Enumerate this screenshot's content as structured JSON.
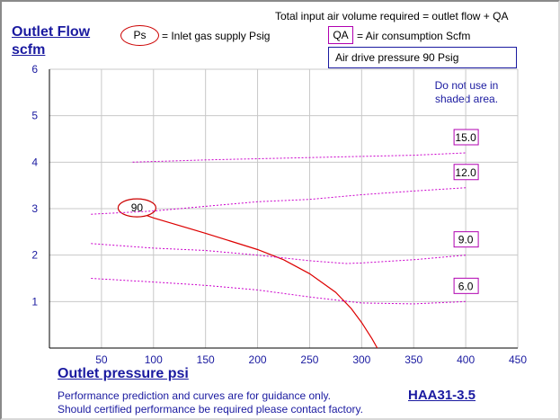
{
  "header": {
    "total_note": "Total input air volume required = outlet flow + QA",
    "ps_symbol": "Ps",
    "ps_desc": "= Inlet gas supply  Psig",
    "qa_symbol": "QA",
    "qa_desc": "= Air consumption  Scfm",
    "drive_pressure": "Air drive pressure  90 Psig"
  },
  "warning": {
    "line1": "Do not use in",
    "line2": "shaded area."
  },
  "footer": {
    "line1": "Performance prediction and curves are for guidance only.",
    "line2": "Should certified performance be required please contact factory.",
    "model": "HAA31-3.5"
  },
  "chart_data": {
    "type": "line",
    "ylabel_line1": "Outlet Flow",
    "ylabel_line2": "scfm",
    "xlabel": "Outlet pressure   psi",
    "xlim": [
      0,
      450
    ],
    "ylim": [
      0,
      6
    ],
    "xticks": [
      50,
      100,
      150,
      200,
      250,
      300,
      350,
      400,
      450
    ],
    "yticks": [
      1,
      2,
      3,
      4,
      5,
      6
    ],
    "grid": true,
    "series": [
      {
        "name": "90",
        "style": "solid",
        "color": "#dd0000",
        "label_position": "start",
        "x": [
          85,
          100,
          150,
          200,
          225,
          250,
          275,
          290,
          300,
          310,
          315
        ],
        "y": [
          2.92,
          2.8,
          2.47,
          2.12,
          1.9,
          1.6,
          1.2,
          0.85,
          0.55,
          0.2,
          0.0
        ]
      },
      {
        "name": "15.0",
        "style": "dashed",
        "color": "#cc00cc",
        "label_position": "end",
        "x": [
          80,
          150,
          250,
          350,
          400
        ],
        "y": [
          4.0,
          4.05,
          4.1,
          4.15,
          4.2
        ]
      },
      {
        "name": "12.0",
        "style": "dashed",
        "color": "#cc00cc",
        "label_position": "end",
        "x": [
          40,
          100,
          150,
          200,
          250,
          300,
          350,
          400
        ],
        "y": [
          2.88,
          2.95,
          3.05,
          3.15,
          3.2,
          3.3,
          3.38,
          3.45
        ]
      },
      {
        "name": "9.0",
        "style": "dashed",
        "color": "#cc00cc",
        "label_position": "end",
        "x": [
          40,
          100,
          150,
          200,
          250,
          285,
          300,
          350,
          400
        ],
        "y": [
          2.25,
          2.15,
          2.1,
          2.0,
          1.88,
          1.82,
          1.83,
          1.9,
          2.0
        ]
      },
      {
        "name": "6.0",
        "style": "dashed",
        "color": "#cc00cc",
        "label_position": "end",
        "x": [
          40,
          100,
          150,
          200,
          250,
          300,
          350,
          400
        ],
        "y": [
          1.5,
          1.42,
          1.35,
          1.25,
          1.1,
          0.97,
          0.95,
          1.0
        ]
      }
    ]
  }
}
